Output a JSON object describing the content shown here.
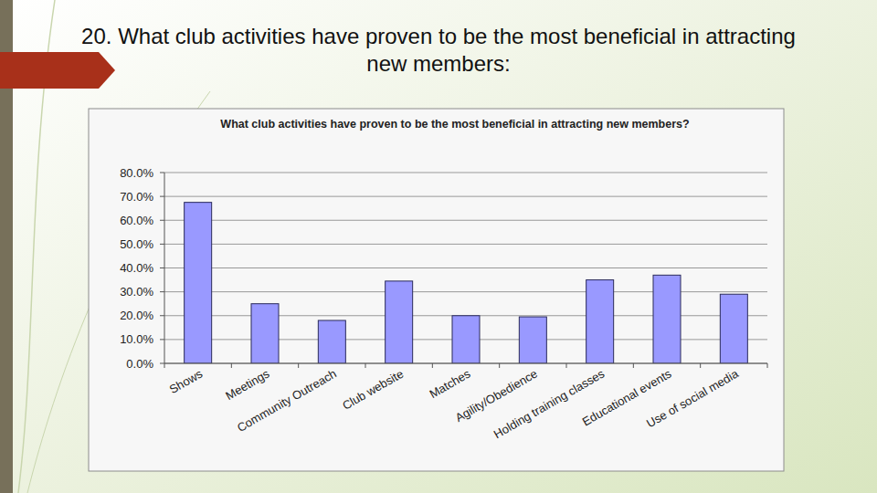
{
  "header": {
    "title": "20. What club activities have proven to be the most beneficial in attracting new members:"
  },
  "chart_data": {
    "type": "bar",
    "title": "What club activities have proven to be the most beneficial in attracting new members?",
    "categories": [
      "Shows",
      "Meetings",
      "Community Outreach",
      "Club website",
      "Matches",
      "Agility/Obedience",
      "Holding training classes",
      "Educational events",
      "Use of social media"
    ],
    "values": [
      67.5,
      25,
      18,
      34.5,
      20,
      19.5,
      35,
      37,
      29
    ],
    "color": "#9999ff",
    "ylim": [
      0,
      80
    ],
    "yticks": [
      {
        "value": 0,
        "label": "0.0%"
      },
      {
        "value": 10,
        "label": "10.0%"
      },
      {
        "value": 20,
        "label": "20.0%"
      },
      {
        "value": 30,
        "label": "30.0%"
      },
      {
        "value": 40,
        "label": "40.0%"
      },
      {
        "value": 50,
        "label": "50.0%"
      },
      {
        "value": 60,
        "label": "60.0%"
      },
      {
        "value": 70,
        "label": "70.0%"
      },
      {
        "value": 80,
        "label": "80.0%"
      }
    ],
    "grid": true
  }
}
